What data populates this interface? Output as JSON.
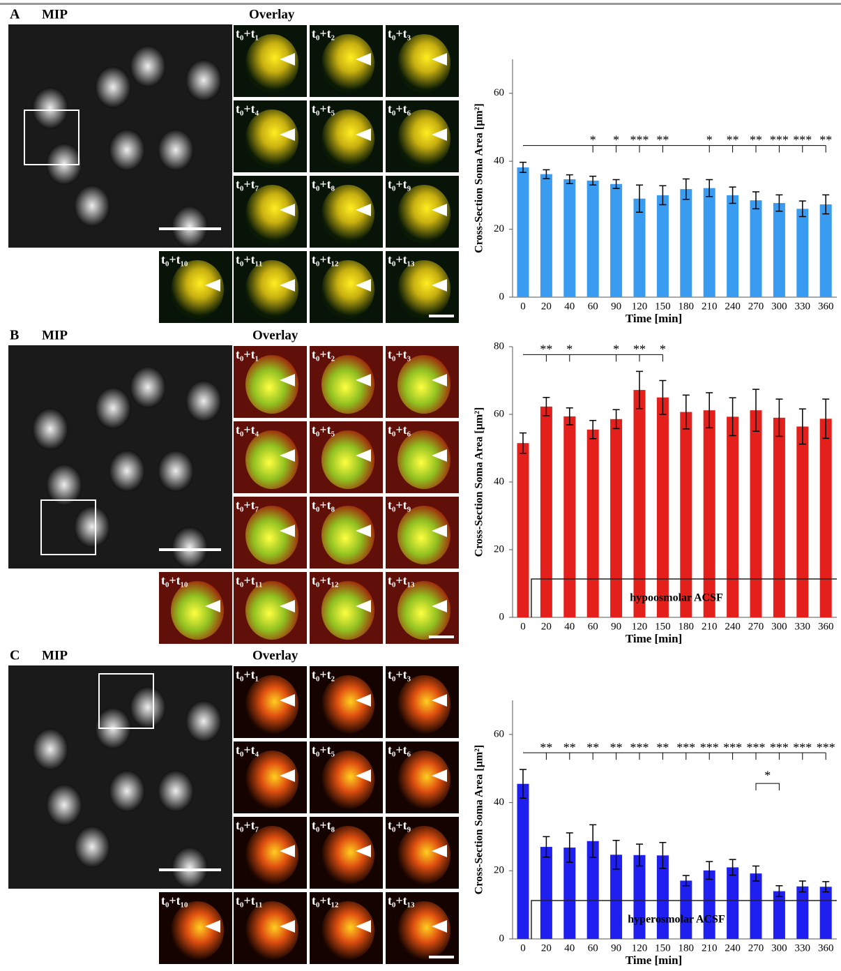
{
  "panels": [
    {
      "label": "A",
      "mip": "MIP",
      "overlay": "Overlay",
      "tiles": [
        "t₀+t₁",
        "t₀+t₂",
        "t₀+t₃",
        "t₀+t₄",
        "t₀+t₅",
        "t₀+t₆",
        "t₀+t₇",
        "t₀+t₈",
        "t₀+t₉",
        "t₀+t₁₀",
        "t₀+t₁₁",
        "t₀+t₁₂",
        "t₀+t₁₃"
      ]
    },
    {
      "label": "B",
      "mip": "MIP",
      "overlay": "Overlay",
      "tiles": [
        "t₀+t₁",
        "t₀+t₂",
        "t₀+t₃",
        "t₀+t₄",
        "t₀+t₅",
        "t₀+t₆",
        "t₀+t₇",
        "t₀+t₈",
        "t₀+t₉",
        "t₀+t₁₀",
        "t₀+t₁₁",
        "t₀+t₁₂",
        "t₀+t₁₃"
      ]
    },
    {
      "label": "C",
      "mip": "MIP",
      "overlay": "Overlay",
      "tiles": [
        "t₀+t₁",
        "t₀+t₂",
        "t₀+t₃",
        "t₀+t₄",
        "t₀+t₅",
        "t₀+t₆",
        "t₀+t₇",
        "t₀+t₈",
        "t₀+t₉",
        "t₀+t₁₀",
        "t₀+t₁₁",
        "t₀+t₁₂",
        "t₀+t₁₃"
      ]
    }
  ],
  "chart_data": [
    {
      "type": "bar",
      "xlabel": "Time [min]",
      "ylabel": "Cross-Section Soma Area [µm²]",
      "color": "#3a9cf0",
      "categories": [
        "0",
        "20",
        "40",
        "60",
        "90",
        "120",
        "150",
        "180",
        "210",
        "240",
        "270",
        "300",
        "330",
        "360"
      ],
      "values": [
        38.2,
        36.2,
        34.7,
        34.3,
        33.3,
        29,
        30,
        31.8,
        32.1,
        30,
        28.5,
        27.7,
        26,
        27.3
      ],
      "errors": [
        1.5,
        1.3,
        1.3,
        1.3,
        1.3,
        4,
        2.8,
        3,
        2.5,
        2.4,
        2.5,
        2.4,
        2.3,
        2.8
      ],
      "significance": [
        null,
        null,
        null,
        "*",
        "*",
        "***",
        "**",
        null,
        "*",
        "**",
        "**",
        "***",
        "***",
        "**"
      ],
      "ylim": [
        0,
        70
      ],
      "yticks": [
        0,
        20,
        40,
        60
      ]
    },
    {
      "type": "bar",
      "xlabel": "Time [min]",
      "ylabel": "Cross-Section Soma Area [µm²]",
      "color": "#e3201b",
      "categories": [
        "0",
        "20",
        "40",
        "60",
        "90",
        "120",
        "150",
        "180",
        "210",
        "240",
        "270",
        "300",
        "330",
        "360"
      ],
      "values": [
        51.5,
        62.3,
        59.4,
        55.5,
        58.6,
        67.2,
        65,
        60.7,
        61.2,
        59.3,
        61.2,
        59,
        56.4,
        58.7
      ],
      "errors": [
        3,
        2.7,
        2.5,
        2.7,
        2.8,
        5.5,
        5,
        5,
        5.2,
        5.6,
        6.2,
        5.5,
        5.2,
        5.8
      ],
      "significance": [
        null,
        "**",
        "*",
        null,
        "*",
        "**",
        "*",
        null,
        null,
        null,
        null,
        null,
        null,
        null
      ],
      "annotation": "hypoosmolar ACSF",
      "ylim": [
        0,
        80
      ],
      "yticks": [
        0,
        20,
        40,
        60,
        80
      ]
    },
    {
      "type": "bar",
      "xlabel": "Time [min]",
      "ylabel": "Cross-Section Soma Area [µm²]",
      "color": "#1f1ff0",
      "categories": [
        "0",
        "20",
        "40",
        "60",
        "90",
        "120",
        "150",
        "180",
        "210",
        "240",
        "270",
        "300",
        "330",
        "360"
      ],
      "values": [
        45.5,
        27,
        26.8,
        28.7,
        24.7,
        24.6,
        24.5,
        17.1,
        20.1,
        21,
        19.2,
        14,
        15.4,
        15.3
      ],
      "errors": [
        4.2,
        3,
        4.3,
        4.8,
        4.2,
        3.2,
        3.8,
        1.5,
        2.6,
        2.3,
        2.2,
        1.6,
        1.6,
        1.5
      ],
      "significance": [
        null,
        "**",
        "**",
        "**",
        "**",
        "***",
        "**",
        "***",
        "***",
        "***",
        "***",
        "***",
        "***",
        "***"
      ],
      "pair_significance": [
        {
          "categories": [
            "270",
            "300"
          ],
          "label": "*"
        }
      ],
      "annotation": "hyperosmolar ACSF",
      "ylim": [
        0,
        70
      ],
      "yticks": [
        0,
        20,
        40,
        60
      ]
    }
  ]
}
